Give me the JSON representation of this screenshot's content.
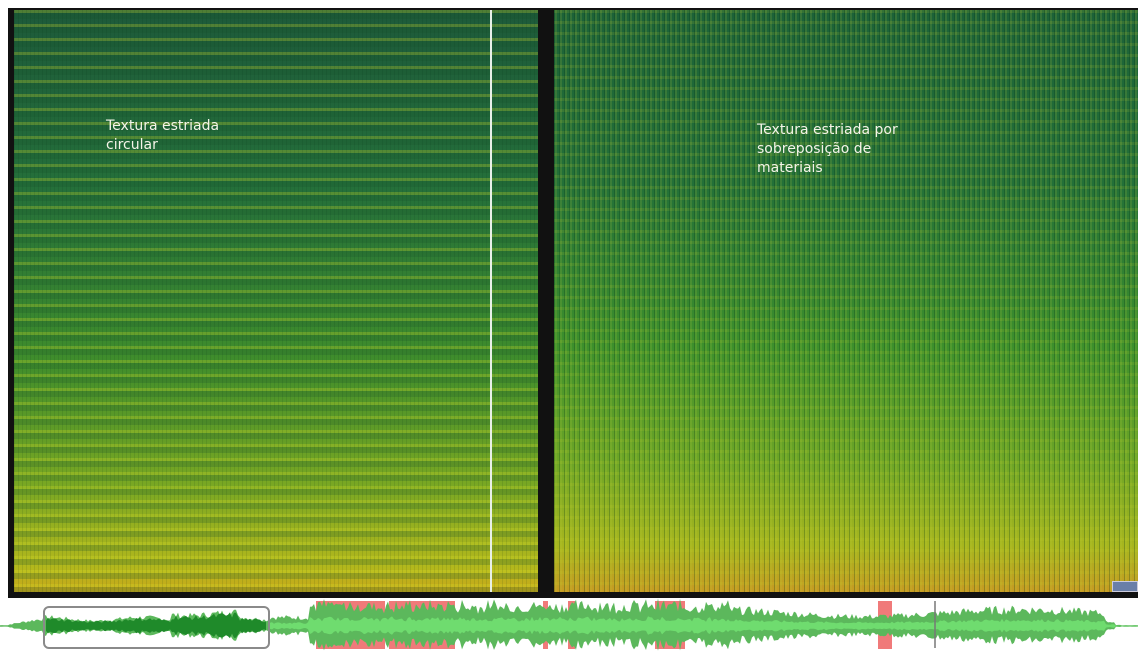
{
  "panels": [
    {
      "label_lines": [
        "Textura estriada",
        "circular"
      ]
    },
    {
      "label_lines": [
        "Textura estriada por",
        "sobreposição de",
        "materiais"
      ]
    }
  ]
}
